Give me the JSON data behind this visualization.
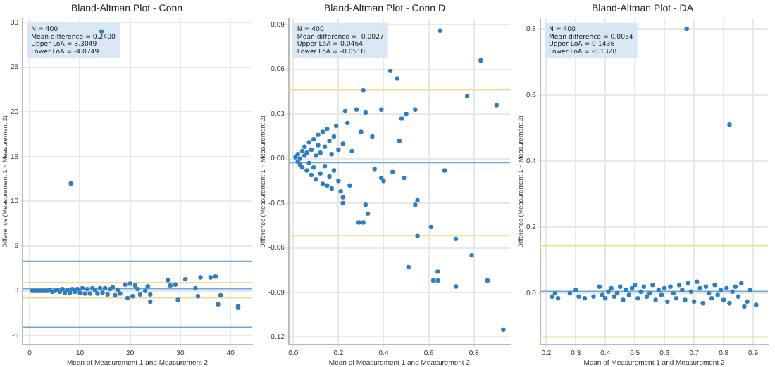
{
  "chart_data": [
    {
      "type": "scatter",
      "title": "Bland-Altman Plot - Conn",
      "xlabel": "Mean of Measurement 1 and Measurement 2",
      "ylabel": "Difference (Measurement 1 − Measurement 2)",
      "annotations": [
        "N = 400",
        "Mean difference = 0.2400",
        "Upper LoA = 3.3049",
        "Lower LoA = -4.0749"
      ],
      "xlim": [
        -1.4,
        44.3
      ],
      "xticks": [
        0,
        10,
        20,
        30,
        40
      ],
      "ylim": [
        -6,
        30.4
      ],
      "yticks": [
        -5,
        0,
        5,
        10,
        15,
        20,
        25,
        30
      ],
      "grid": true,
      "marker": "circle",
      "ref_lines": [
        {
          "axis": "y",
          "value": 0.24,
          "color": "#6fa8dc"
        },
        {
          "axis": "y",
          "value": 3.3,
          "color": "#6fa8dc"
        },
        {
          "axis": "y",
          "value": -4.07,
          "color": "#6fa8dc"
        },
        {
          "axis": "y",
          "value": 0.92,
          "color": "#f6d98a"
        },
        {
          "axis": "y",
          "value": -0.77,
          "color": "#f6d98a"
        }
      ],
      "series": [
        {
          "color": "#2f7ec1",
          "x": [
            0.5,
            1,
            1.5,
            2,
            2.5,
            3,
            3.5,
            4,
            4.5,
            5,
            5.5,
            6,
            6.5,
            7,
            7.5,
            8,
            8.5,
            9,
            9.5,
            10,
            10.5,
            11,
            11.5,
            12,
            12.5,
            13,
            13.5,
            14,
            14.5,
            15,
            15.5,
            16,
            16.5,
            17,
            17.5,
            18,
            19,
            19.5,
            20,
            20.5,
            21,
            21.5,
            22,
            23,
            23.5,
            24,
            24,
            27.5,
            28,
            29,
            29.5,
            31,
            33,
            33.5,
            34,
            36,
            37,
            37.5,
            38,
            41.5,
            41.5,
            8.2,
            14.3
          ],
          "values": [
            0,
            0,
            0,
            0,
            0,
            0,
            0,
            0.1,
            -0.1,
            0,
            0.1,
            -0.1,
            0.2,
            -0.2,
            0.1,
            -0.2,
            0.2,
            -0.1,
            0.2,
            -0.2,
            0.3,
            -0.3,
            0.2,
            -0.3,
            0.3,
            0.1,
            -0.3,
            0.3,
            -0.2,
            0.3,
            -0.4,
            0.2,
            0.4,
            -0.5,
            0.1,
            -0.3,
            0.7,
            -0.8,
            0.8,
            -0.6,
            0.6,
            0.2,
            -0.4,
            0,
            0.5,
            -1.2,
            -0.4,
            1.2,
            0.6,
            0.7,
            -1,
            1.3,
            0.3,
            -0.6,
            1.5,
            1.5,
            1.6,
            -1.5,
            -0.5,
            -1.7,
            -1.9,
            12,
            29
          ]
        }
      ]
    },
    {
      "type": "scatter",
      "title": "Bland-Altman Plot - Conn D",
      "xlabel": "Mean of Measurement 1 and Measurement 2",
      "ylabel": "Difference (Measurement 1 − Measurement 2)",
      "annotations": [
        "N = 400",
        "Mean difference = -0.0027",
        "Upper LoA = 0.0464",
        "Lower LoA = -0.0518"
      ],
      "xlim": [
        -0.02,
        0.96
      ],
      "xticks": [
        {
          "value": 0,
          "label": "0.0"
        },
        {
          "value": 0.2,
          "label": "0.2"
        },
        {
          "value": 0.4,
          "label": "0.4"
        },
        {
          "value": 0.6,
          "label": "0.6"
        },
        {
          "value": 0.8,
          "label": "0.8"
        }
      ],
      "ylim": [
        -0.125,
        0.094
      ],
      "yticks": [
        {
          "value": -0.12,
          "label": "-0.12"
        },
        {
          "value": -0.09,
          "label": "-0.09"
        },
        {
          "value": -0.06,
          "label": "-0.06"
        },
        {
          "value": -0.03,
          "label": "-0.03"
        },
        {
          "value": 0,
          "label": "0.00"
        },
        {
          "value": 0.03,
          "label": "0.03"
        },
        {
          "value": 0.06,
          "label": "0.06"
        },
        {
          "value": 0.09,
          "label": "0.09"
        }
      ],
      "grid": true,
      "marker": "circle",
      "ref_lines": [
        {
          "axis": "y",
          "value": -0.0027,
          "color": "#6fa8dc"
        },
        {
          "axis": "y",
          "value": 0.0464,
          "color": "#f6d98a"
        },
        {
          "axis": "y",
          "value": -0.0518,
          "color": "#f6d98a"
        }
      ],
      "series": [
        {
          "color": "#2f7ec1",
          "x": [
            0.65,
            0.83,
            0.43,
            0.46,
            0.31,
            0.77,
            0.9,
            0.23,
            0.28,
            0.32,
            0.39,
            0.5,
            0.54,
            0.48,
            0.3,
            0.35,
            0.47,
            0.36,
            0.44,
            0.49,
            0.39,
            0.4,
            0.67,
            0.22,
            0.32,
            0.33,
            0.31,
            0.29,
            0.54,
            0.55,
            0.61,
            0.55,
            0.72,
            0.51,
            0.64,
            0.62,
            0.64,
            0.72,
            0.79,
            0.86,
            0.93,
            0.01,
            0.02,
            0.02,
            0.03,
            0.03,
            0.04,
            0.04,
            0.05,
            0.05,
            0.06,
            0.06,
            0.07,
            0.07,
            0.08,
            0.08,
            0.09,
            0.09,
            0.1,
            0.1,
            0.11,
            0.11,
            0.12,
            0.12,
            0.13,
            0.13,
            0.14,
            0.14,
            0.15,
            0.15,
            0.16,
            0.16,
            0.17,
            0.17,
            0.18,
            0.18,
            0.19,
            0.2,
            0.2,
            0.21,
            0.22,
            0.22,
            0.24,
            0.25,
            0.26
          ],
          "values": [
            0.086,
            0.066,
            0.059,
            0.054,
            0.046,
            0.042,
            0.036,
            0.032,
            0.033,
            0.031,
            0.033,
            0.03,
            0.033,
            0.027,
            0.018,
            0.015,
            0.012,
            -0.007,
            -0.009,
            -0.013,
            -0.013,
            -0.015,
            -0.008,
            -0.03,
            -0.031,
            -0.037,
            -0.043,
            -0.043,
            -0.031,
            -0.028,
            -0.046,
            -0.052,
            -0.054,
            -0.073,
            -0.076,
            -0.082,
            -0.082,
            -0.086,
            -0.065,
            -0.082,
            -0.115,
            0.001,
            -0.002,
            0.003,
            0,
            -0.004,
            0.005,
            -0.006,
            0.002,
            0.008,
            -0.008,
            0.004,
            -0.003,
            0.011,
            -0.011,
            0.006,
            0.013,
            -0.006,
            0.002,
            -0.014,
            0.009,
            0.016,
            -0.01,
            0.004,
            -0.017,
            0.018,
            0.008,
            -0.005,
            0.02,
            -0.018,
            0.012,
            -0.012,
            0.003,
            -0.02,
            0.015,
            -0.008,
            0.022,
            -0.015,
            0.006,
            -0.022,
            0.01,
            -0.026,
            0.024,
            -0.018,
            0.005
          ]
        }
      ]
    },
    {
      "type": "scatter",
      "title": "Bland-Altman Plot - DA",
      "xlabel": "Mean of Measurement 1 and Measurement 2",
      "ylabel": "Difference (Measurement 1 − Measurement 2)",
      "annotations": [
        "N = 400",
        "Mean difference = 0.0054",
        "Upper LoA = 0.1436",
        "Lower LoA = -0.1328"
      ],
      "xlim": [
        0.18,
        0.95
      ],
      "xticks": [
        {
          "value": 0.2,
          "label": "0.2"
        },
        {
          "value": 0.3,
          "label": "0.3"
        },
        {
          "value": 0.4,
          "label": "0.4"
        },
        {
          "value": 0.5,
          "label": "0.5"
        },
        {
          "value": 0.6,
          "label": "0.6"
        },
        {
          "value": 0.7,
          "label": "0.7"
        },
        {
          "value": 0.8,
          "label": "0.8"
        },
        {
          "value": 0.9,
          "label": "0.9"
        }
      ],
      "ylim": [
        -0.155,
        0.83
      ],
      "yticks": [
        {
          "value": 0,
          "label": "0.0"
        },
        {
          "value": 0.2,
          "label": "0.2"
        },
        {
          "value": 0.4,
          "label": "0.4"
        },
        {
          "value": 0.6,
          "label": "0.6"
        },
        {
          "value": 0.8,
          "label": "0.8"
        }
      ],
      "grid": true,
      "marker": "circle",
      "ref_lines": [
        {
          "axis": "y",
          "value": 0.0054,
          "color": "#6fa8dc"
        },
        {
          "axis": "y",
          "value": 0.1436,
          "color": "#f6d98a"
        },
        {
          "axis": "y",
          "value": -0.1328,
          "color": "#f6d98a"
        }
      ],
      "series": [
        {
          "color": "#2f7ec1",
          "x": [
            0.675,
            0.82,
            0.22,
            0.23,
            0.24,
            0.28,
            0.3,
            0.31,
            0.33,
            0.36,
            0.38,
            0.39,
            0.4,
            0.41,
            0.42,
            0.43,
            0.44,
            0.45,
            0.46,
            0.47,
            0.48,
            0.49,
            0.5,
            0.51,
            0.52,
            0.53,
            0.54,
            0.55,
            0.56,
            0.57,
            0.58,
            0.59,
            0.6,
            0.61,
            0.62,
            0.63,
            0.64,
            0.65,
            0.66,
            0.67,
            0.68,
            0.69,
            0.7,
            0.71,
            0.72,
            0.73,
            0.74,
            0.75,
            0.76,
            0.77,
            0.78,
            0.79,
            0.8,
            0.81,
            0.82,
            0.83,
            0.84,
            0.85,
            0.86,
            0.87,
            0.88,
            0.89,
            0.91
          ],
          "values": [
            0.8,
            0.51,
            -0.01,
            0,
            -0.015,
            0,
            0.01,
            -0.01,
            -0.015,
            -0.01,
            0.02,
            -0.005,
            -0.015,
            0.005,
            0.015,
            -0.01,
            0,
            0.02,
            -0.02,
            0.01,
            -0.005,
            0.015,
            0.025,
            -0.015,
            0.005,
            0.02,
            -0.01,
            0,
            0.025,
            -0.02,
            0.01,
            -0.005,
            0.015,
            -0.025,
            0.02,
            0,
            -0.015,
            0.025,
            0.01,
            -0.02,
            0.03,
            0.005,
            -0.025,
            0.035,
            0.015,
            -0.03,
            0.02,
            0,
            -0.015,
            0.025,
            -0.005,
            0.01,
            -0.02,
            0.015,
            -0.03,
            0.005,
            0.02,
            -0.01,
            0.03,
            -0.04,
            -0.025,
            0.01,
            -0.035
          ]
        }
      ]
    }
  ]
}
